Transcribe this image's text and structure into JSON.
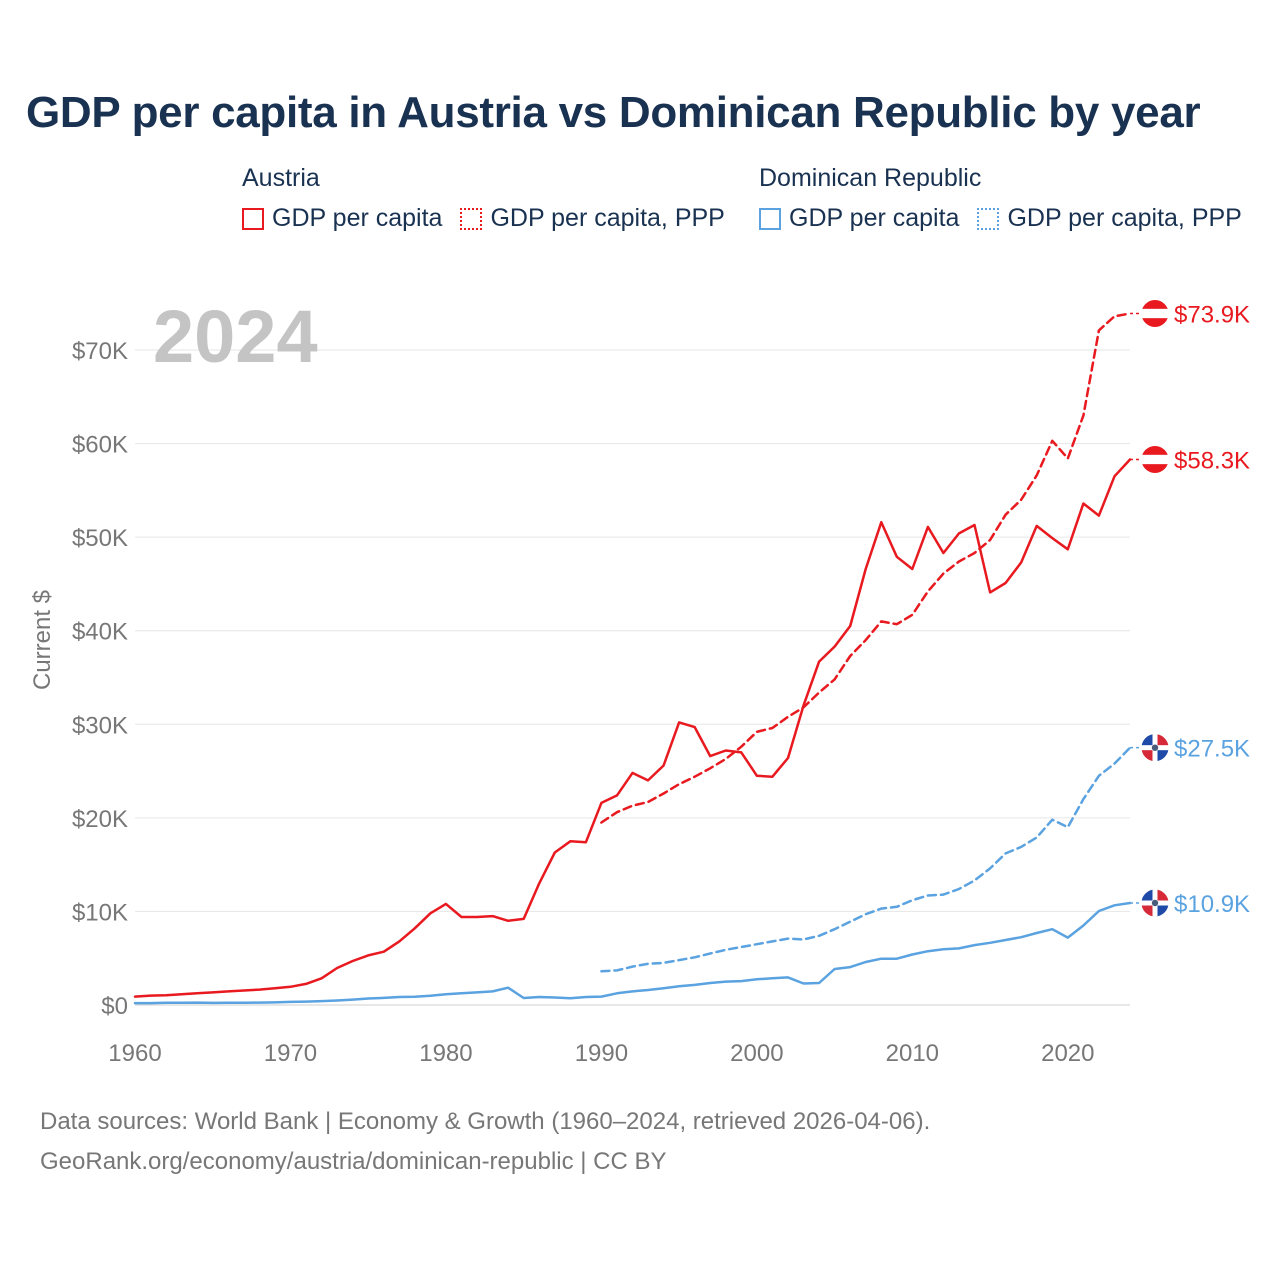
{
  "title": "GDP per capita in Austria vs Dominican Republic by year",
  "legend": {
    "groups": [
      {
        "name": "Austria",
        "color": "#e8191f",
        "items": [
          {
            "label": "GDP per capita",
            "style": "solid"
          },
          {
            "label": "GDP per capita, PPP",
            "style": "dotted"
          }
        ]
      },
      {
        "name": "Dominican Republic",
        "color": "#5aa2e0",
        "items": [
          {
            "label": "GDP per capita",
            "style": "solid"
          },
          {
            "label": "GDP per capita, PPP",
            "style": "dotted"
          }
        ]
      }
    ]
  },
  "footer": {
    "line1": "Data sources: World Bank | Economy & Growth (1960–2024, retrieved 2026-04-06).",
    "line2": "GeoRank.org/economy/austria/dominican-republic | CC BY"
  },
  "chart_data": {
    "type": "line",
    "year_label": "2024",
    "ylabel": "Current $",
    "xlim": [
      1960,
      2024
    ],
    "ylim": [
      0,
      70000
    ],
    "x_ticks": [
      1960,
      1970,
      1980,
      1990,
      2000,
      2010,
      2020
    ],
    "y_ticks": [
      0,
      10000,
      20000,
      30000,
      40000,
      50000,
      60000,
      70000
    ],
    "y_tick_labels": [
      "$0",
      "$10K",
      "$20K",
      "$30K",
      "$40K",
      "$50K",
      "$60K",
      "$70K"
    ],
    "grid": true,
    "series": [
      {
        "name": "Austria GDP per capita",
        "country": "Austria",
        "color": "#e8191f",
        "dash": false,
        "end_label": "$58.3K",
        "flag": "austria",
        "x": [
          1960,
          1961,
          1962,
          1963,
          1964,
          1965,
          1966,
          1967,
          1968,
          1969,
          1970,
          1971,
          1972,
          1973,
          1974,
          1975,
          1976,
          1977,
          1978,
          1979,
          1980,
          1981,
          1982,
          1983,
          1984,
          1985,
          1986,
          1987,
          1988,
          1989,
          1990,
          1991,
          1992,
          1993,
          1994,
          1995,
          1996,
          1997,
          1998,
          1999,
          2000,
          2001,
          2002,
          2003,
          2004,
          2005,
          2006,
          2007,
          2008,
          2009,
          2010,
          2011,
          2012,
          2013,
          2014,
          2015,
          2016,
          2017,
          2018,
          2019,
          2020,
          2021,
          2022,
          2023,
          2024
        ],
        "values": [
          900,
          1000,
          1050,
          1150,
          1250,
          1350,
          1450,
          1550,
          1650,
          1800,
          1950,
          2250,
          2850,
          3950,
          4700,
          5300,
          5700,
          6800,
          8200,
          9800,
          10800,
          9400,
          9400,
          9500,
          9000,
          9200,
          13000,
          16300,
          17500,
          17400,
          21600,
          22400,
          24800,
          24000,
          25600,
          30200,
          29700,
          26600,
          27200,
          27000,
          24500,
          24400,
          26400,
          32000,
          36700,
          38300,
          40500,
          46600,
          51600,
          47900,
          46600,
          51100,
          48300,
          50400,
          51300,
          44100,
          45100,
          47300,
          51200,
          49900,
          48700,
          53600,
          52300,
          56500,
          58300
        ]
      },
      {
        "name": "Austria GDP per capita, PPP",
        "country": "Austria",
        "color": "#e8191f",
        "dash": true,
        "end_label": "$73.9K",
        "flag": "austria",
        "x": [
          1990,
          1991,
          1992,
          1993,
          1994,
          1995,
          1996,
          1997,
          1998,
          1999,
          2000,
          2001,
          2002,
          2003,
          2004,
          2005,
          2006,
          2007,
          2008,
          2009,
          2010,
          2011,
          2012,
          2013,
          2014,
          2015,
          2016,
          2017,
          2018,
          2019,
          2020,
          2021,
          2022,
          2023,
          2024
        ],
        "values": [
          19500,
          20600,
          21300,
          21700,
          22600,
          23600,
          24400,
          25300,
          26300,
          27600,
          29200,
          29600,
          30800,
          31800,
          33400,
          34800,
          37300,
          39000,
          41000,
          40700,
          41700,
          44200,
          46100,
          47400,
          48300,
          49700,
          52400,
          54000,
          56600,
          60300,
          58400,
          63000,
          72100,
          73600,
          73900
        ]
      },
      {
        "name": "Dominican Republic GDP per capita",
        "country": "Dominican Republic",
        "color": "#5aa2e0",
        "dash": false,
        "end_label": "$10.9K",
        "flag": "dominican-republic",
        "x": [
          1960,
          1961,
          1962,
          1963,
          1964,
          1965,
          1966,
          1967,
          1968,
          1969,
          1970,
          1971,
          1972,
          1973,
          1974,
          1975,
          1976,
          1977,
          1978,
          1979,
          1980,
          1981,
          1982,
          1983,
          1984,
          1985,
          1986,
          1987,
          1988,
          1989,
          1990,
          1991,
          1992,
          1993,
          1994,
          1995,
          1996,
          1997,
          1998,
          1999,
          2000,
          2001,
          2002,
          2003,
          2004,
          2005,
          2006,
          2007,
          2008,
          2009,
          2010,
          2011,
          2012,
          2013,
          2014,
          2015,
          2016,
          2017,
          2018,
          2019,
          2020,
          2021,
          2022,
          2023,
          2024
        ],
        "values": [
          200,
          200,
          230,
          250,
          260,
          220,
          230,
          250,
          260,
          280,
          330,
          360,
          420,
          480,
          580,
          700,
          760,
          860,
          880,
          980,
          1150,
          1250,
          1350,
          1450,
          1850,
          750,
          850,
          800,
          720,
          850,
          900,
          1250,
          1450,
          1600,
          1800,
          2000,
          2150,
          2350,
          2500,
          2550,
          2750,
          2850,
          2950,
          2300,
          2350,
          3850,
          4050,
          4600,
          4950,
          4950,
          5400,
          5750,
          5950,
          6050,
          6400,
          6650,
          6950,
          7250,
          7700,
          8100,
          7200,
          8500,
          10050,
          10650,
          10900
        ]
      },
      {
        "name": "Dominican Republic GDP per capita, PPP",
        "country": "Dominican Republic",
        "color": "#5aa2e0",
        "dash": true,
        "end_label": "$27.5K",
        "flag": "dominican-republic",
        "x": [
          1990,
          1991,
          1992,
          1993,
          1994,
          1995,
          1996,
          1997,
          1998,
          1999,
          2000,
          2001,
          2002,
          2003,
          2004,
          2005,
          2006,
          2007,
          2008,
          2009,
          2010,
          2011,
          2012,
          2013,
          2014,
          2015,
          2016,
          2017,
          2018,
          2019,
          2020,
          2021,
          2022,
          2023,
          2024
        ],
        "values": [
          3600,
          3700,
          4100,
          4400,
          4500,
          4800,
          5100,
          5500,
          5900,
          6200,
          6500,
          6800,
          7100,
          7000,
          7400,
          8100,
          8900,
          9700,
          10300,
          10500,
          11200,
          11700,
          11800,
          12400,
          13300,
          14600,
          16200,
          16900,
          17900,
          19800,
          19000,
          22000,
          24500,
          25800,
          27500
        ]
      }
    ]
  }
}
